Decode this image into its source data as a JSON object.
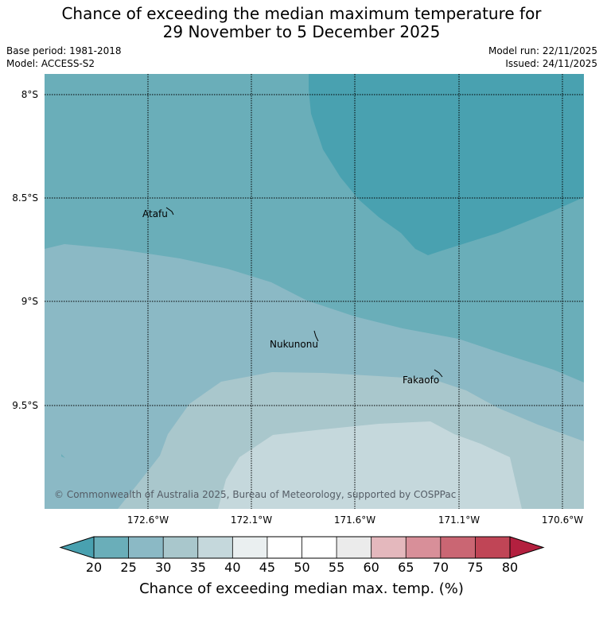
{
  "title": {
    "line1": "Chance of exceeding the median maximum temperature for",
    "line2": "29 November to 5 December 2025"
  },
  "info": {
    "base_period": "Base period: 1981-2018",
    "model": "Model: ACCESS-S2",
    "model_run": "Model run: 22/11/2025",
    "issued": "Issued: 24/11/2025"
  },
  "map": {
    "lat_labels": [
      "8°S",
      "8.5°S",
      "9°S",
      "9.5°S"
    ],
    "lon_labels": [
      "172.6°W",
      "172.1°W",
      "171.6°W",
      "171.1°W",
      "170.6°W"
    ],
    "places": [
      "Atafu",
      "Nukunonu",
      "Fakaofo"
    ],
    "copyright": "© Commonwealth of Australia 2025, Bureau of Meteorology, supported by COSPPac",
    "band_colors": {
      "below20": "#49a1b0",
      "b20_25": "#6aaeb9",
      "b25_30": "#8bb9c5",
      "b30_35": "#a9c7cc",
      "b35_40": "#c5d8dc"
    }
  },
  "colorbar": {
    "ticks": [
      "20",
      "25",
      "30",
      "35",
      "40",
      "45",
      "50",
      "55",
      "60",
      "65",
      "70",
      "75",
      "80"
    ],
    "colors": {
      "below": "#49a1b0",
      "bins": [
        "#6aaeb9",
        "#8bb9c5",
        "#a9c7cc",
        "#c5d8dc",
        "#eaeff0",
        "#ffffff",
        "#ffffff",
        "#ebebeb",
        "#e4b8bd",
        "#d88f99",
        "#ca6673",
        "#c04556"
      ],
      "above": "#b3203f"
    },
    "label": "Chance of exceeding median max. temp. (%)"
  }
}
